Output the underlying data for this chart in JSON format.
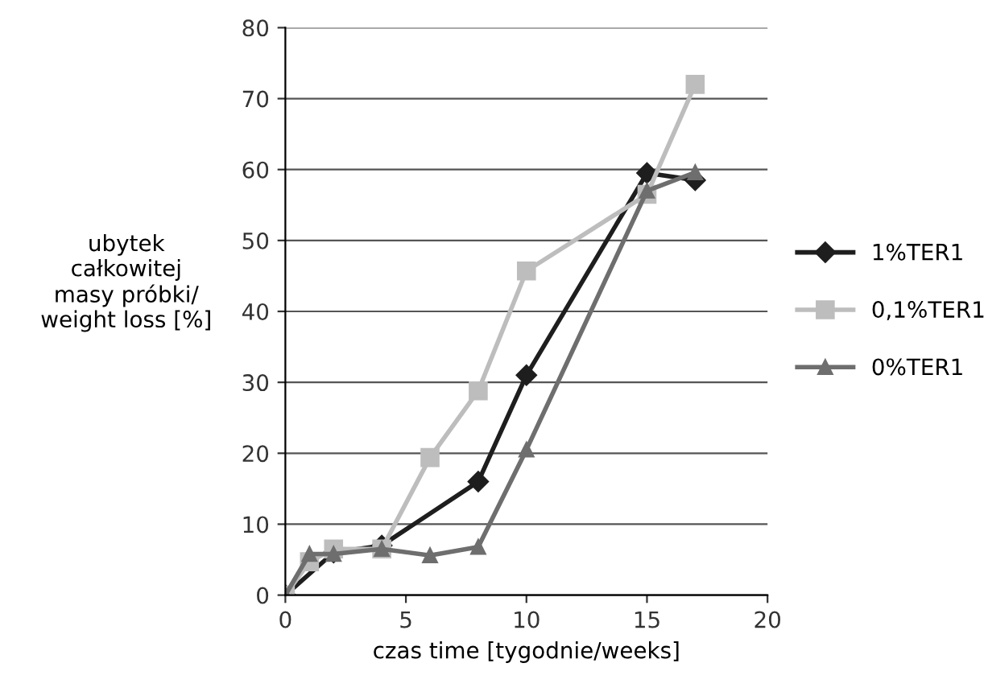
{
  "chart_data": {
    "type": "line",
    "xlabel": "czas time [tygodnie/weeks]",
    "ylabel": "ubytek\ncałkowitej\nmasy próbki/\nweight loss [%]",
    "xlim": [
      0,
      20
    ],
    "xticks": [
      0,
      5,
      10,
      15,
      20
    ],
    "ylim": [
      0,
      80
    ],
    "yticks": [
      0,
      10,
      20,
      30,
      40,
      50,
      60,
      70,
      80
    ],
    "grid": "y",
    "legend": "right",
    "series": [
      {
        "name": "1%TER1",
        "color": "#1e1e1e",
        "marker": "diamond",
        "x": [
          0,
          2,
          4,
          8,
          10,
          15,
          17
        ],
        "values": [
          0,
          6,
          7,
          16,
          31,
          59.5,
          58.5
        ]
      },
      {
        "name": "0,1%TER1",
        "color": "#bdbdbd",
        "marker": "square",
        "x": [
          0,
          1,
          2,
          4,
          6,
          8,
          10,
          15,
          17
        ],
        "values": [
          0,
          4.7,
          6.5,
          6.5,
          19.4,
          28.8,
          45.7,
          56.5,
          72
        ]
      },
      {
        "name": "0%TER1",
        "color": "#6e6e6e",
        "marker": "triangle",
        "x": [
          0,
          1,
          2,
          4,
          6,
          8,
          10,
          15,
          17
        ],
        "values": [
          0,
          5.8,
          5.8,
          6.5,
          5.6,
          6.8,
          20.5,
          57,
          59.6
        ]
      }
    ]
  }
}
